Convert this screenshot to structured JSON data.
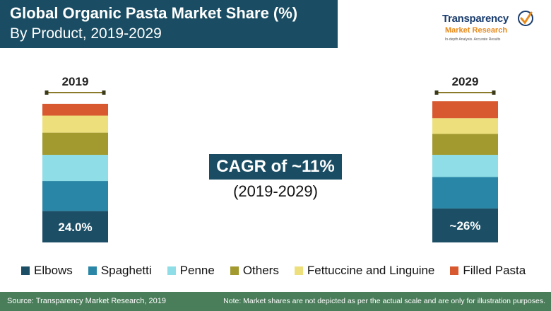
{
  "title": {
    "line1": "Global Organic Pasta Market Share (%)",
    "line2": "By Product, 2019-2029"
  },
  "logo": {
    "line1": "Transparency",
    "line2": "Market Research",
    "line3": "In-depth Analysis. Accurate Results"
  },
  "cagr": {
    "label": "CAGR of ~11%",
    "period": "(2019-2029)"
  },
  "footer": {
    "source": "Source: Transparency Market Research, 2019",
    "note": "Note: Market shares are not depicted as per the actual scale and are only for illustration purposes."
  },
  "colors": {
    "Elbows": "#1c4f66",
    "Spaghetti": "#2a86a6",
    "Penne": "#8fdde6",
    "Others": "#a29a2f",
    "Fettuccine and Linguine": "#ede07c",
    "Filled Pasta": "#d8582f"
  },
  "chart_data": {
    "type": "bar",
    "stacked": true,
    "categories": [
      "2019",
      "2029"
    ],
    "series": [
      {
        "name": "Elbows",
        "values": [
          24.0,
          26
        ],
        "labels": [
          "24.0%",
          "~26%"
        ]
      },
      {
        "name": "Spaghetti",
        "values": [
          23,
          24
        ]
      },
      {
        "name": "Penne",
        "values": [
          20,
          17
        ]
      },
      {
        "name": "Others",
        "values": [
          17,
          16
        ]
      },
      {
        "name": "Fettuccine and Linguine",
        "values": [
          13,
          12
        ]
      },
      {
        "name": "Filled Pasta",
        "values": [
          9,
          13
        ]
      }
    ],
    "legend": "bottom",
    "grid": false
  }
}
